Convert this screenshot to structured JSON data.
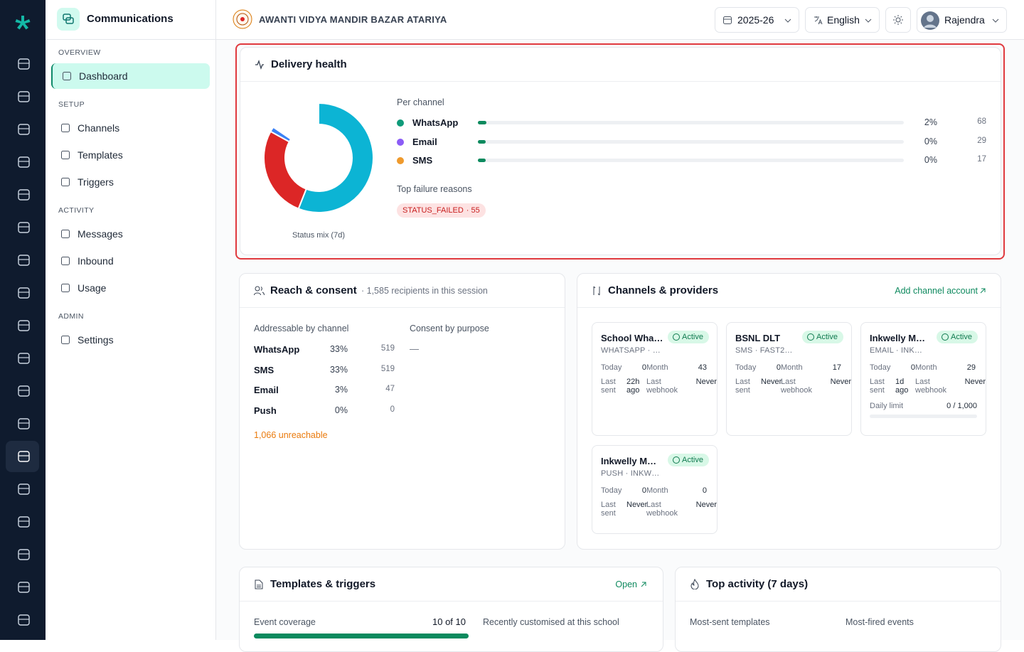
{
  "sidebar": {
    "title": "Communications",
    "sections": [
      {
        "label": "OVERVIEW",
        "items": [
          "Dashboard"
        ]
      },
      {
        "label": "SETUP",
        "items": [
          "Channels",
          "Templates",
          "Triggers"
        ]
      },
      {
        "label": "ACTIVITY",
        "items": [
          "Messages",
          "Inbound",
          "Usage"
        ]
      },
      {
        "label": "ADMIN",
        "items": [
          "Settings"
        ]
      }
    ]
  },
  "header": {
    "school": "AWANTI VIDYA MANDIR BAZAR ATARIYA",
    "year": "2025-26",
    "language": "English",
    "user": "Rajendra"
  },
  "delivery_health": {
    "title": "Delivery health",
    "status_mix": {
      "label": "Status mix (7d)",
      "values": [
        56,
        27,
        1.5,
        15.5
      ],
      "colors": [
        "#0cb4d4",
        "#dc2626",
        "#3b82f6",
        "#ffffff"
      ]
    },
    "per_channel": {
      "label": "Per channel",
      "channels": [
        "WhatsApp",
        "Email",
        "SMS"
      ],
      "colors": [
        "#0f9b7a",
        "#8b5cf6",
        "#ef9a2d"
      ],
      "values": [
        2,
        0,
        0
      ],
      "value_labels": [
        "2%",
        "0%",
        "0%"
      ],
      "counts": [
        68,
        29,
        17
      ],
      "bar_color": "#0b8a5e"
    },
    "top_failures": {
      "label": "Top failure reasons",
      "items": [
        {
          "reason": "STATUS_FAILED",
          "count": "· 55"
        }
      ]
    }
  },
  "reach": {
    "title": "Reach & consent",
    "subtitle": "· 1,585 recipients in this session",
    "addressable_label": "Addressable by channel",
    "rows": [
      {
        "channel": "WhatsApp",
        "share": "33%",
        "count": 519
      },
      {
        "channel": "SMS",
        "share": "33%",
        "count": 519
      },
      {
        "channel": "Email",
        "share": "3%",
        "count": 47
      },
      {
        "channel": "Push",
        "share": "0%",
        "count": 0
      }
    ],
    "consent_label": "Consent by purpose",
    "consent_value": "—",
    "unreachable": "1,066 unreachable"
  },
  "providers": {
    "title": "Channels & providers",
    "action": "Add channel account",
    "labels": {
      "today": "Today",
      "month": "Month",
      "last_sent": "Last sent",
      "last_webhook": "Last webhook",
      "daily_limit": "Daily limit"
    },
    "cards": [
      {
        "name": "School Wha…",
        "status": "Active",
        "detail": "WHATSAPP · …",
        "today": 0,
        "month": 43,
        "last_sent": "22h ago",
        "last_webhook": "Never"
      },
      {
        "name": "BSNL DLT",
        "status": "Active",
        "detail": "SMS · FAST2…",
        "today": 0,
        "month": 17,
        "last_sent": "Never",
        "last_webhook": "Never"
      },
      {
        "name": "Inkwelly M…",
        "status": "Active",
        "detail": "EMAIL · INK…",
        "today": 0,
        "month": 29,
        "last_sent": "1d ago",
        "last_webhook": "Never",
        "daily_limit": "0 / 1,000"
      },
      {
        "name": "Inkwelly M…",
        "status": "Active",
        "detail": "PUSH · INKW…",
        "today": 0,
        "month": 0,
        "last_sent": "Never",
        "last_webhook": "Never"
      }
    ]
  },
  "templates": {
    "title": "Templates & triggers",
    "action": "Open",
    "coverage_label": "Event coverage",
    "coverage": "10 of 10",
    "recent_label": "Recently customised at this school"
  },
  "activity": {
    "title": "Top activity (7 days)",
    "most_sent": "Most-sent templates",
    "most_fired": "Most-fired events"
  }
}
